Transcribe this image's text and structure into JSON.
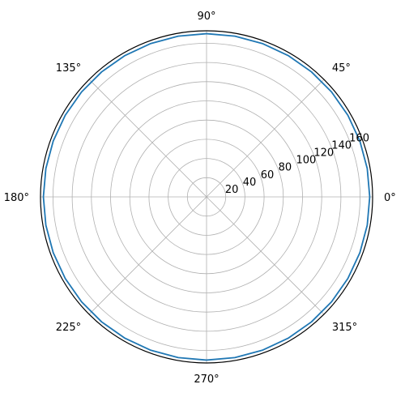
{
  "chart_data": {
    "type": "line",
    "projection": "polar",
    "title": "",
    "theta_tick_labels": [
      "0°",
      "45°",
      "90°",
      "135°",
      "180°",
      "225°",
      "270°",
      "315°"
    ],
    "theta_ticks_deg": [
      0,
      45,
      90,
      135,
      180,
      225,
      270,
      315
    ],
    "r_ticks": [
      20,
      40,
      60,
      80,
      100,
      120,
      140,
      160
    ],
    "r_tick_labels": [
      "20",
      "40",
      "60",
      "80",
      "100",
      "120",
      "140",
      "160"
    ],
    "rlim": [
      0,
      173
    ],
    "r_label_angle_deg": 22.5,
    "grid": true,
    "series": [
      {
        "color": "#1f77b4",
        "theta_deg": [
          0,
          10,
          20,
          30,
          40,
          50,
          60,
          70,
          80,
          90,
          100,
          110,
          120,
          130,
          140,
          150,
          160,
          170,
          180,
          190,
          200,
          210,
          220,
          230,
          240,
          250,
          260,
          270,
          280,
          290,
          300,
          310,
          320,
          330,
          340,
          350,
          360
        ],
        "r": [
          170,
          170,
          170,
          170,
          170,
          170,
          170,
          170,
          170,
          170,
          170,
          170,
          170,
          170,
          170,
          170,
          170,
          170,
          170,
          170,
          170,
          170,
          170,
          170,
          170,
          170,
          170,
          170,
          170,
          170,
          170,
          170,
          170,
          170,
          170,
          170,
          170
        ]
      }
    ]
  }
}
